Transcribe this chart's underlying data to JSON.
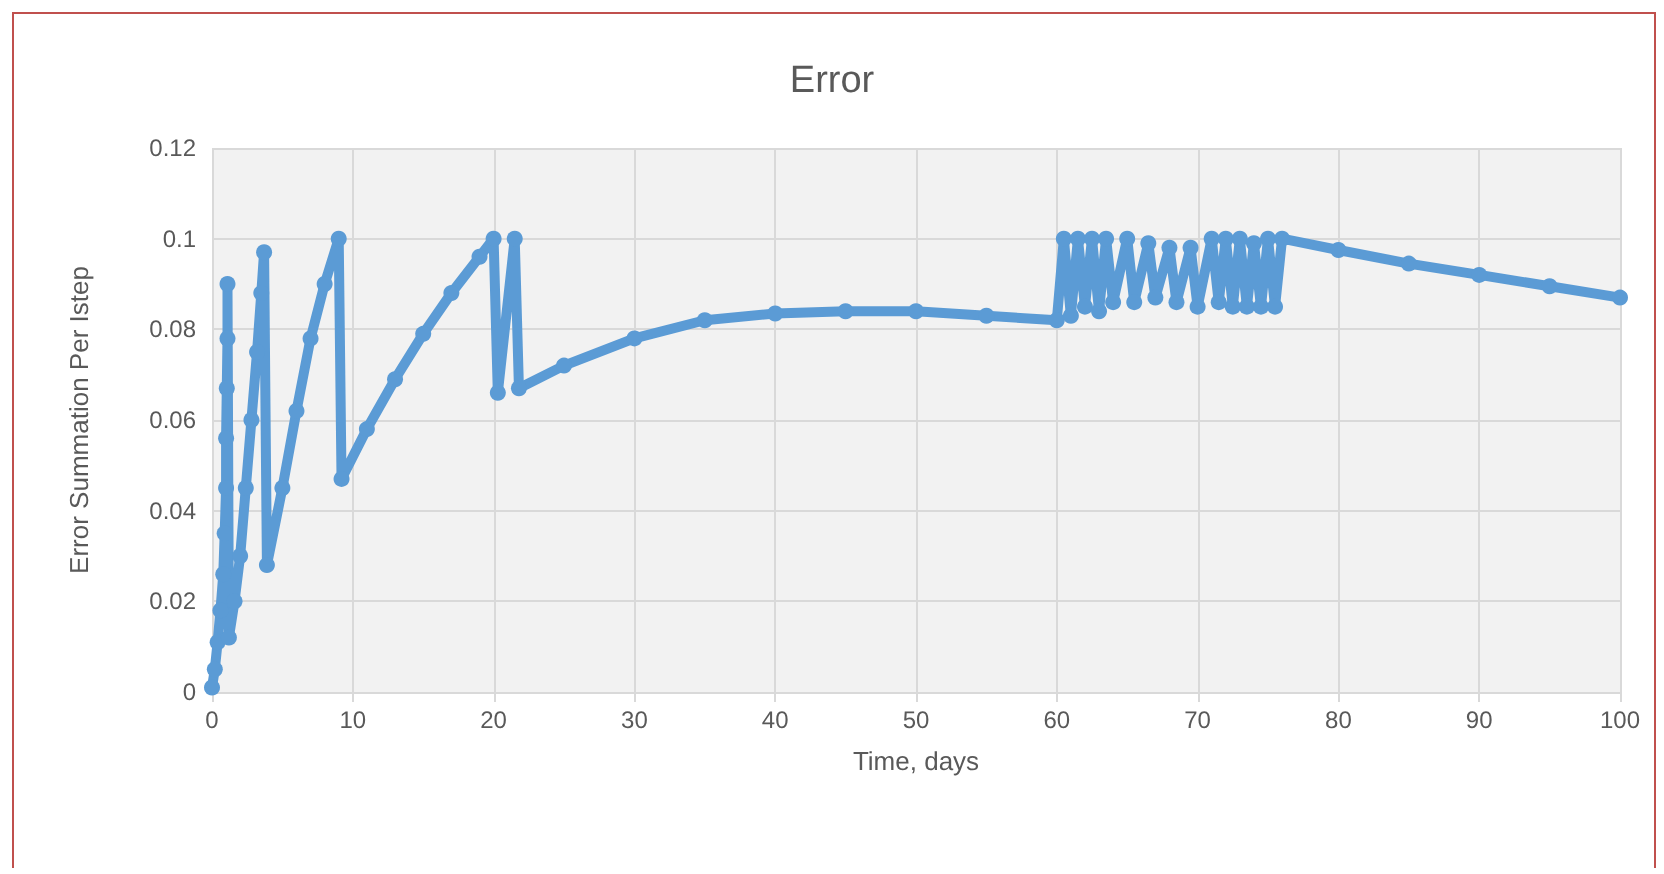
{
  "chart_data": {
    "type": "line",
    "title": "Error",
    "xlabel": "Time, days",
    "ylabel": "Error Summation Per Istep",
    "x": [
      0,
      0.2,
      0.4,
      0.6,
      0.8,
      0.9,
      1.0,
      1.0,
      1.05,
      1.1,
      1.1,
      1.2,
      1.6,
      2.0,
      2.4,
      2.8,
      3.2,
      3.5,
      3.7,
      3.9,
      5,
      6,
      7,
      8,
      9,
      9.2,
      11,
      13,
      15,
      17,
      19,
      20,
      20.3,
      21.5,
      21.8,
      25,
      30,
      35,
      40,
      45,
      50,
      55,
      60,
      60.5,
      61,
      61.5,
      62,
      62.5,
      63,
      63.5,
      64,
      65,
      65.5,
      66.5,
      67,
      68,
      68.5,
      69.5,
      70,
      71,
      71.5,
      72,
      72.5,
      73,
      73.5,
      74,
      74.5,
      75,
      75.5,
      76,
      80,
      85,
      90,
      95,
      100
    ],
    "series": [
      {
        "color": "#5b9bd5",
        "values": [
          0.001,
          0.005,
          0.011,
          0.018,
          0.026,
          0.035,
          0.045,
          0.056,
          0.067,
          0.078,
          0.09,
          0.012,
          0.02,
          0.03,
          0.045,
          0.06,
          0.075,
          0.088,
          0.097,
          0.028,
          0.045,
          0.062,
          0.078,
          0.09,
          0.1,
          0.047,
          0.058,
          0.069,
          0.079,
          0.088,
          0.096,
          0.1,
          0.066,
          0.1,
          0.067,
          0.072,
          0.078,
          0.082,
          0.0835,
          0.084,
          0.084,
          0.083,
          0.082,
          0.1,
          0.083,
          0.1,
          0.085,
          0.1,
          0.084,
          0.1,
          0.086,
          0.1,
          0.086,
          0.099,
          0.087,
          0.098,
          0.086,
          0.098,
          0.085,
          0.1,
          0.086,
          0.1,
          0.085,
          0.1,
          0.085,
          0.099,
          0.085,
          0.1,
          0.085,
          0.1,
          0.0975,
          0.0945,
          0.092,
          0.0895,
          0.087
        ]
      }
    ],
    "xlim": [
      0,
      100
    ],
    "xticks": [
      0,
      10,
      20,
      30,
      40,
      50,
      60,
      70,
      80,
      90,
      100
    ],
    "ylim": [
      0,
      0.12
    ],
    "yticks": [
      0,
      0.02,
      0.04,
      0.06,
      0.08,
      0.1,
      0.12
    ],
    "grid": true,
    "marker": "circle",
    "line_style": "solid"
  }
}
